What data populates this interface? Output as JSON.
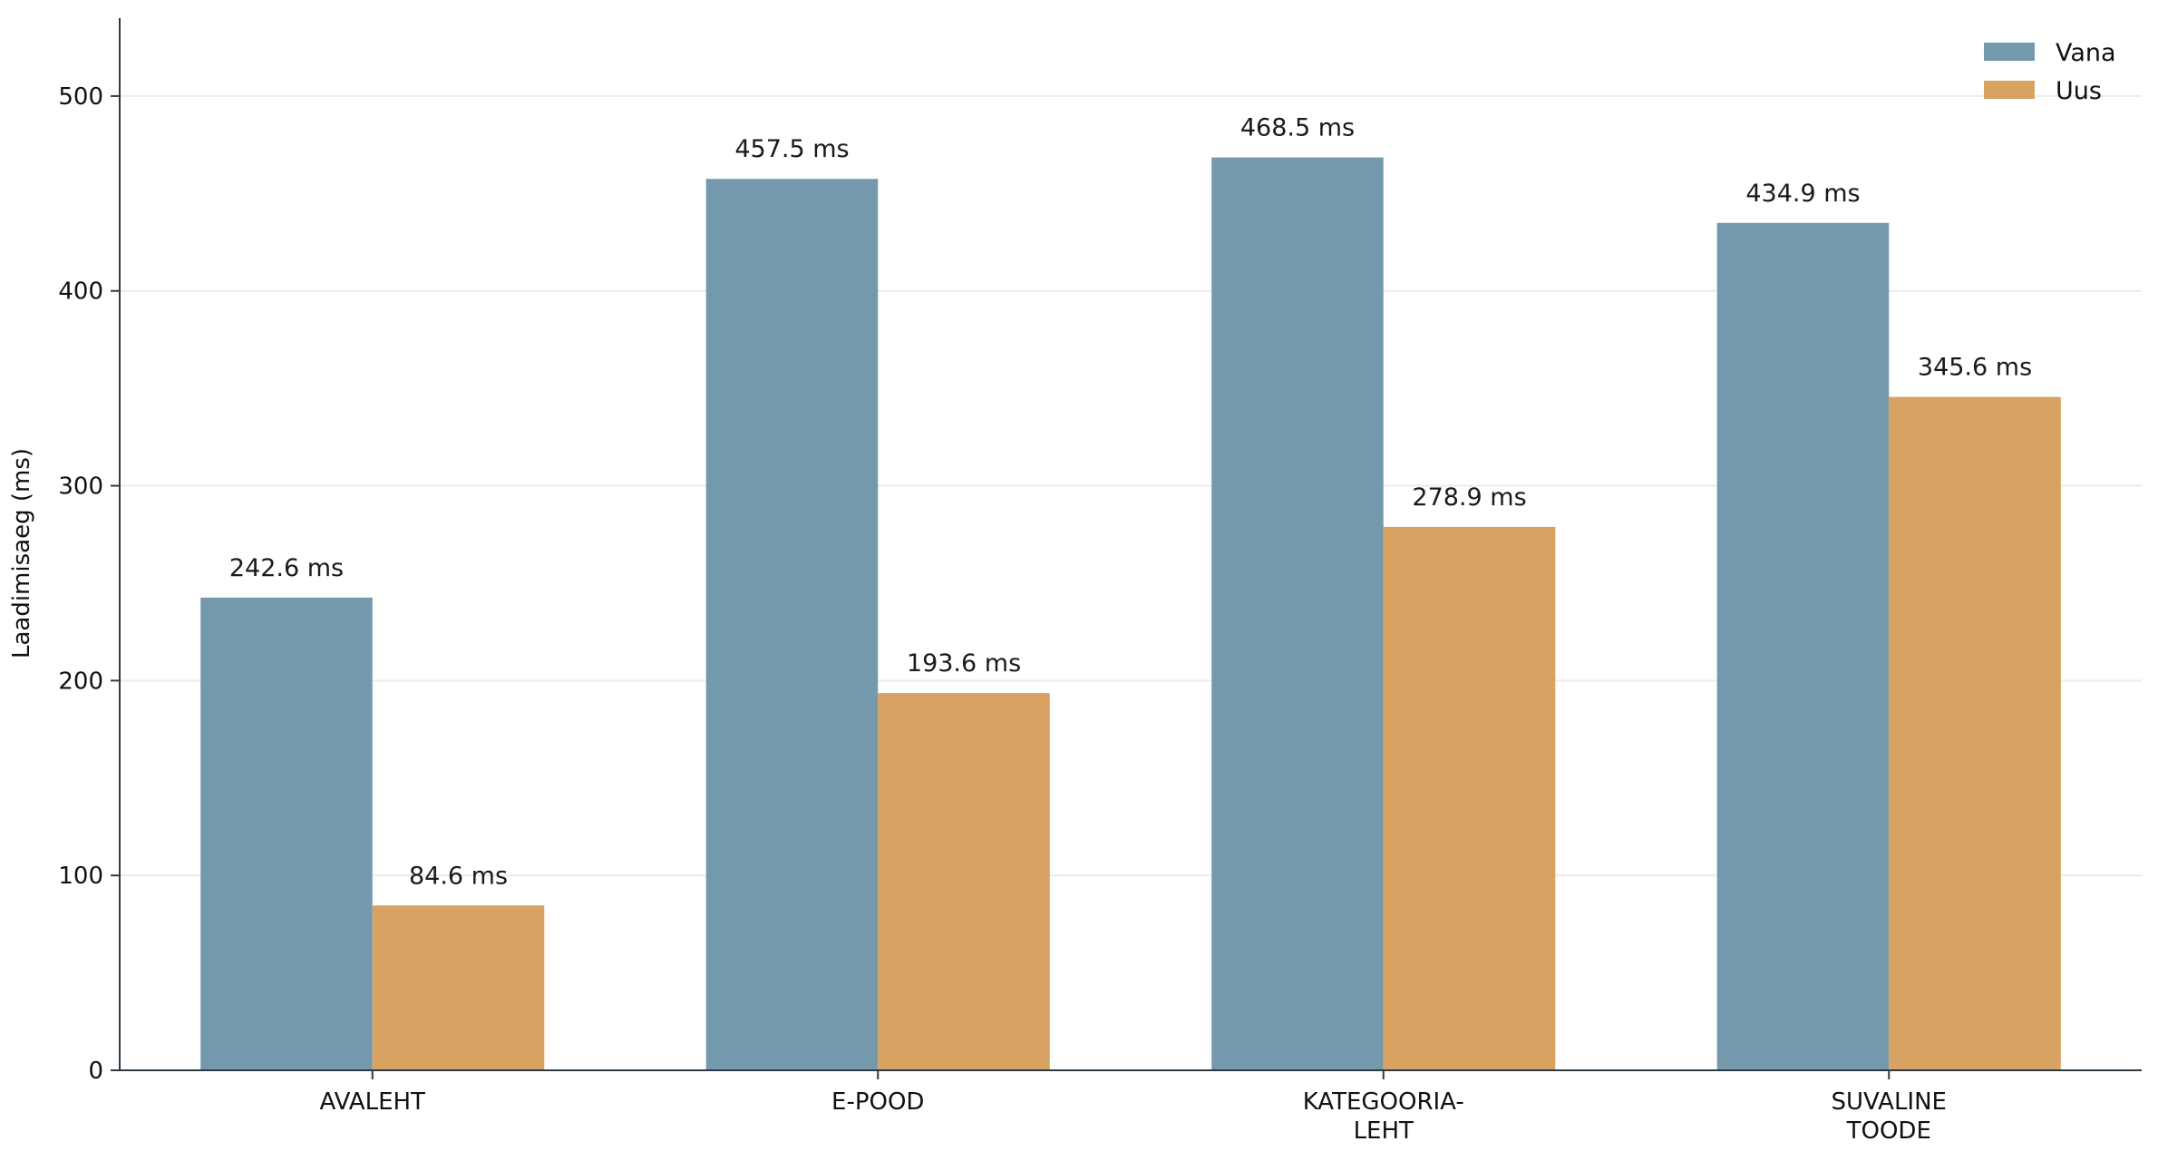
{
  "chart_data": {
    "type": "bar",
    "categories": [
      [
        "AVALEHT"
      ],
      [
        "E-POOD"
      ],
      [
        "KATEGOORIA-",
        "LEHT"
      ],
      [
        "SUVALINE",
        "TOODE"
      ]
    ],
    "series": [
      {
        "name": "Vana",
        "color": "#7499ad",
        "values": [
          242.6,
          457.5,
          468.5,
          434.9
        ]
      },
      {
        "name": "Uus",
        "color": "#d8a262",
        "values": [
          84.6,
          193.6,
          278.9,
          345.6
        ]
      }
    ],
    "value_suffix": " ms",
    "ylabel": "Laadimisaeg (ms)",
    "xlabel": "",
    "title": "",
    "ylim": [
      0,
      540
    ],
    "yticks": [
      0,
      100,
      200,
      300,
      400,
      500
    ],
    "grid": "horizontal",
    "legend": "top-right"
  }
}
